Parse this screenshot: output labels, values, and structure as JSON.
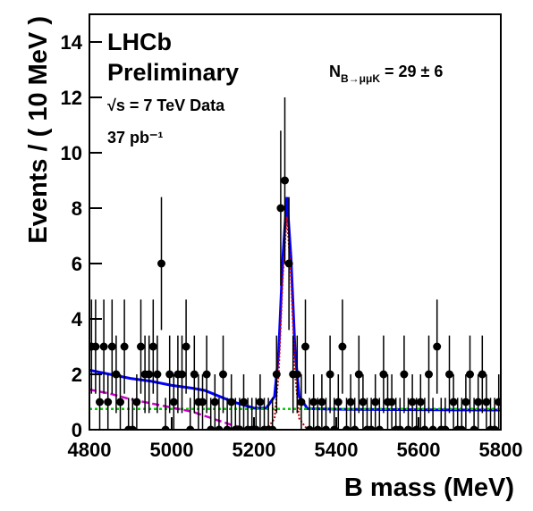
{
  "chart_data": {
    "type": "scatter",
    "xlabel": "B mass (MeV)",
    "ylabel": "Events / ( 10 MeV )",
    "annotations": {
      "experiment": "LHCb",
      "status": "Preliminary",
      "energy": "√s = 7 TeV Data",
      "lumi": "37 pb⁻¹",
      "yield_main": "N",
      "yield_sub": "B→μμK",
      "yield_rest": " = 29 ± 6"
    },
    "xlim": [
      4800,
      5800
    ],
    "xticks": [
      4800,
      5000,
      5200,
      5400,
      5600,
      5800
    ],
    "ylim": [
      0,
      15
    ],
    "yticks": [
      0,
      2,
      4,
      6,
      8,
      10,
      12,
      14
    ],
    "data": {
      "color": "#000000",
      "x": [
        4805,
        4815,
        4825,
        4835,
        4845,
        4855,
        4865,
        4875,
        4885,
        4895,
        4905,
        4915,
        4925,
        4935,
        4945,
        4955,
        4965,
        4975,
        4985,
        4995,
        5005,
        5015,
        5025,
        5035,
        5045,
        5055,
        5065,
        5075,
        5085,
        5095,
        5105,
        5115,
        5125,
        5135,
        5145,
        5155,
        5165,
        5175,
        5185,
        5195,
        5205,
        5215,
        5225,
        5235,
        5245,
        5255,
        5265,
        5275,
        5285,
        5295,
        5305,
        5315,
        5325,
        5335,
        5345,
        5355,
        5365,
        5375,
        5385,
        5395,
        5405,
        5415,
        5425,
        5435,
        5445,
        5455,
        5465,
        5475,
        5485,
        5495,
        5505,
        5515,
        5525,
        5535,
        5545,
        5555,
        5565,
        5575,
        5585,
        5595,
        5605,
        5615,
        5625,
        5635,
        5645,
        5655,
        5665,
        5675,
        5685,
        5695,
        5705,
        5715,
        5725,
        5735,
        5745,
        5755,
        5765,
        5775,
        5785,
        5795
      ],
      "values": [
        3,
        3,
        1,
        3,
        1,
        3,
        2,
        1,
        3,
        0,
        0,
        1,
        3,
        2,
        2,
        3,
        2,
        6,
        0,
        2,
        1,
        2,
        2,
        3,
        0,
        2,
        1,
        1,
        2,
        0,
        1,
        0,
        2,
        0,
        1,
        0,
        0,
        1,
        0,
        0,
        0,
        1,
        0,
        0,
        0,
        2,
        8,
        9,
        6,
        2,
        2,
        1,
        3,
        0,
        1,
        0,
        1,
        0,
        2,
        0,
        1,
        3,
        0,
        1,
        0,
        2,
        1,
        0,
        0,
        1,
        0,
        2,
        1,
        1,
        0,
        0,
        2,
        0,
        1,
        0,
        1,
        0,
        2,
        0,
        3,
        0,
        0,
        2,
        1,
        0,
        0,
        1,
        2,
        0,
        1,
        2,
        1,
        0,
        0,
        1
      ],
      "errors": [
        1.7,
        1.7,
        1,
        1.7,
        1,
        1.7,
        1.4,
        1,
        1.7,
        1.15,
        1.15,
        1,
        1.7,
        1.4,
        1.4,
        1.7,
        1.4,
        2.4,
        1.15,
        1.4,
        1,
        1.4,
        1.4,
        1.7,
        1.15,
        1.4,
        1,
        1,
        1.4,
        1.15,
        1,
        1.15,
        1.4,
        1.15,
        1,
        1.15,
        1.15,
        1,
        1.15,
        1.15,
        1.15,
        1,
        1.15,
        1.15,
        1.15,
        1.4,
        2.8,
        3,
        2.4,
        1.4,
        1.4,
        1,
        1.7,
        1.15,
        1,
        1.15,
        1,
        1.15,
        1.4,
        1.15,
        1,
        1.7,
        1.15,
        1,
        1.15,
        1.4,
        1,
        1.15,
        1.15,
        1,
        1.15,
        1.4,
        1,
        1,
        1.15,
        1.15,
        1.4,
        1.15,
        1,
        1.15,
        1,
        1.15,
        1.4,
        1.15,
        1.7,
        1.15,
        1.15,
        1.4,
        1,
        1.15,
        1.15,
        1,
        1.4,
        1.15,
        1,
        1.4,
        1,
        1.15,
        1.15,
        1
      ]
    },
    "curves": [
      {
        "color": "#0000ff",
        "dash": "none",
        "width": 3,
        "x": [
          4800,
          4850,
          4900,
          4950,
          5000,
          5050,
          5080,
          5100,
          5150,
          5200,
          5230,
          5250,
          5260,
          5270,
          5280,
          5290,
          5300,
          5310,
          5330,
          5400,
          5600,
          5800
        ],
        "values": [
          2.15,
          2.0,
          1.85,
          1.75,
          1.6,
          1.5,
          1.42,
          1.3,
          1.0,
          0.78,
          0.78,
          1.2,
          2.8,
          6.2,
          8.4,
          6.2,
          2.8,
          1.2,
          0.76,
          0.74,
          0.72,
          0.71
        ]
      },
      {
        "color": "#00cc00",
        "dash": "3,3",
        "width": 2.5,
        "x": [
          4800,
          5800
        ],
        "values": [
          0.75,
          0.75
        ]
      },
      {
        "color": "#cc00cc",
        "dash": "8,4",
        "width": 2.5,
        "x": [
          4800,
          4850,
          4900,
          4950,
          5000,
          5050,
          5080,
          5100,
          5150,
          5200
        ],
        "values": [
          1.45,
          1.3,
          1.1,
          0.95,
          0.8,
          0.65,
          0.5,
          0.4,
          0.15,
          0
        ]
      },
      {
        "color": "#cc0000",
        "dash": "2,2",
        "width": 2,
        "x": [
          5230,
          5250,
          5260,
          5270,
          5280,
          5290,
          5300,
          5310,
          5330
        ],
        "values": [
          0,
          0.4,
          2.0,
          5.5,
          7.7,
          5.5,
          2.0,
          0.4,
          0
        ]
      }
    ]
  }
}
